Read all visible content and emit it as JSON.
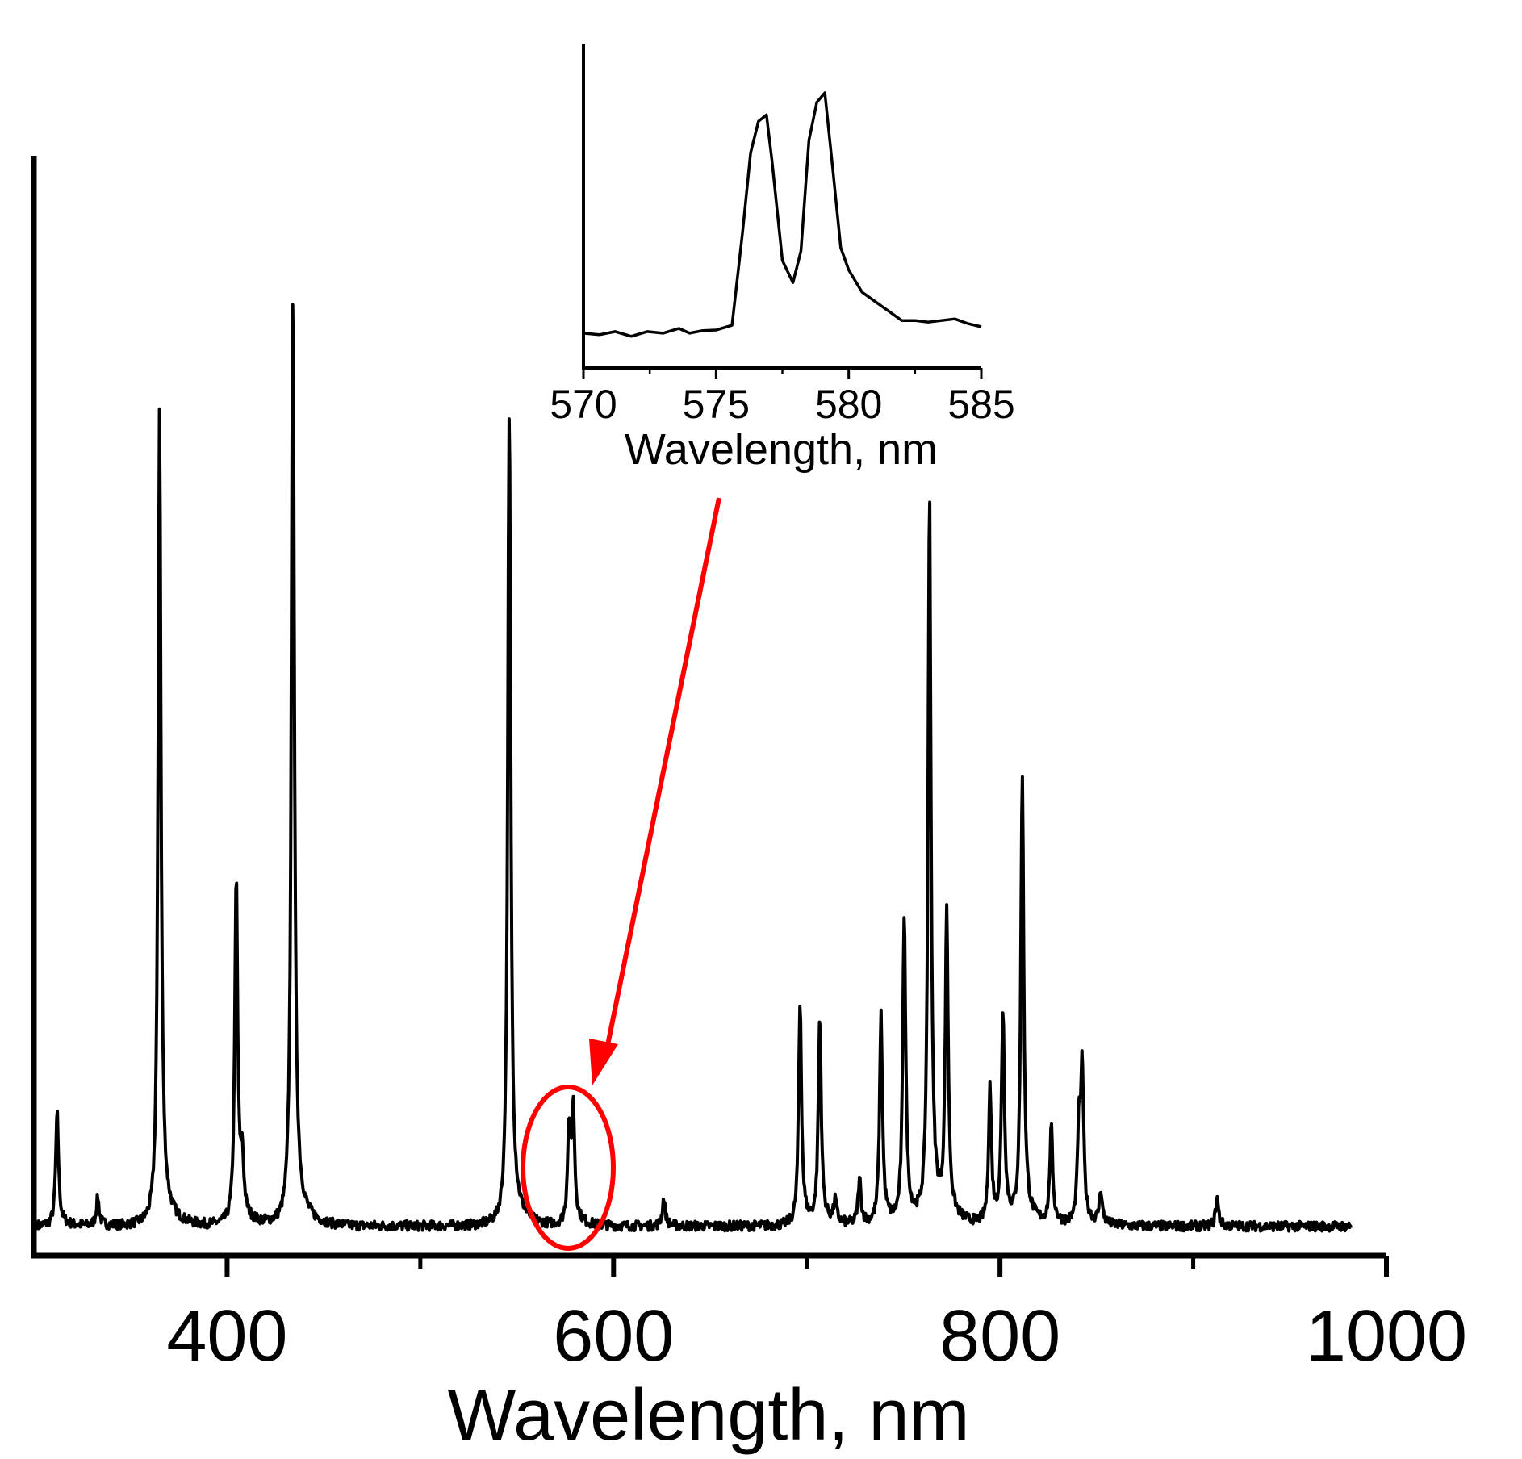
{
  "colors": {
    "line": "#000000",
    "annotation": "#ff0000",
    "background": "#ffffff"
  },
  "chart_data": [
    {
      "id": "main",
      "type": "line",
      "title": "",
      "xlabel": "Wavelength, nm",
      "ylabel": "",
      "xlim": [
        300,
        1000
      ],
      "ylim": [
        0,
        100
      ],
      "xticks": [
        400,
        600,
        800,
        1000
      ],
      "x_minor_ticks": [
        500,
        700,
        900
      ],
      "grid": false,
      "baseline": 1.5,
      "peaks": [
        {
          "x": 312,
          "y": 10
        },
        {
          "x": 333,
          "y": 2.5
        },
        {
          "x": 365,
          "y": 72
        },
        {
          "x": 404.7,
          "y": 31
        },
        {
          "x": 407.8,
          "y": 5
        },
        {
          "x": 434,
          "y": 85
        },
        {
          "x": 546,
          "y": 74
        },
        {
          "x": 576.9,
          "y": 8.5
        },
        {
          "x": 579.1,
          "y": 10
        },
        {
          "x": 626,
          "y": 2.5
        },
        {
          "x": 696.5,
          "y": 20
        },
        {
          "x": 706.7,
          "y": 18.5
        },
        {
          "x": 714.7,
          "y": 2
        },
        {
          "x": 727.3,
          "y": 4
        },
        {
          "x": 738.4,
          "y": 18.5
        },
        {
          "x": 750.4,
          "y": 28
        },
        {
          "x": 763.5,
          "y": 65
        },
        {
          "x": 772.4,
          "y": 27
        },
        {
          "x": 794.8,
          "y": 12
        },
        {
          "x": 801.5,
          "y": 19
        },
        {
          "x": 811.5,
          "y": 40
        },
        {
          "x": 826.5,
          "y": 8.5
        },
        {
          "x": 840.8,
          "y": 8
        },
        {
          "x": 842.5,
          "y": 13.5
        },
        {
          "x": 852.1,
          "y": 3
        },
        {
          "x": 912.3,
          "y": 2.5
        }
      ]
    },
    {
      "id": "inset",
      "type": "line",
      "title": "",
      "xlabel": "Wavelength, nm",
      "ylabel": "",
      "xlim": [
        570,
        585
      ],
      "ylim": [
        0,
        100
      ],
      "xticks": [
        570,
        575,
        580,
        585
      ],
      "x_minor_ticks": [
        572.5,
        577.5,
        582.5
      ],
      "grid": false,
      "x": [
        570,
        570.6,
        571.2,
        571.8,
        572.4,
        573,
        573.6,
        574,
        574.5,
        575,
        575.6,
        576,
        576.3,
        576.6,
        576.9,
        577.1,
        577.5,
        577.9,
        578.2,
        578.5,
        578.8,
        579.1,
        579.4,
        579.7,
        580,
        580.5,
        581,
        581.5,
        582,
        582.5,
        583,
        583.5,
        584,
        584.5,
        585
      ],
      "y": [
        11,
        10.5,
        11.5,
        10,
        11.5,
        11,
        12.5,
        11,
        11.8,
        12,
        13.5,
        43,
        68,
        78,
        80,
        66,
        34,
        27,
        37,
        72,
        84,
        87,
        63,
        38,
        31,
        24,
        21,
        18,
        15,
        15,
        14.5,
        15,
        15.5,
        14,
        13
      ]
    }
  ],
  "inset_xticks_labels": [
    "570",
    "575",
    "580",
    "585"
  ],
  "main_xticks_labels": [
    "400",
    "600",
    "800",
    "1000"
  ]
}
